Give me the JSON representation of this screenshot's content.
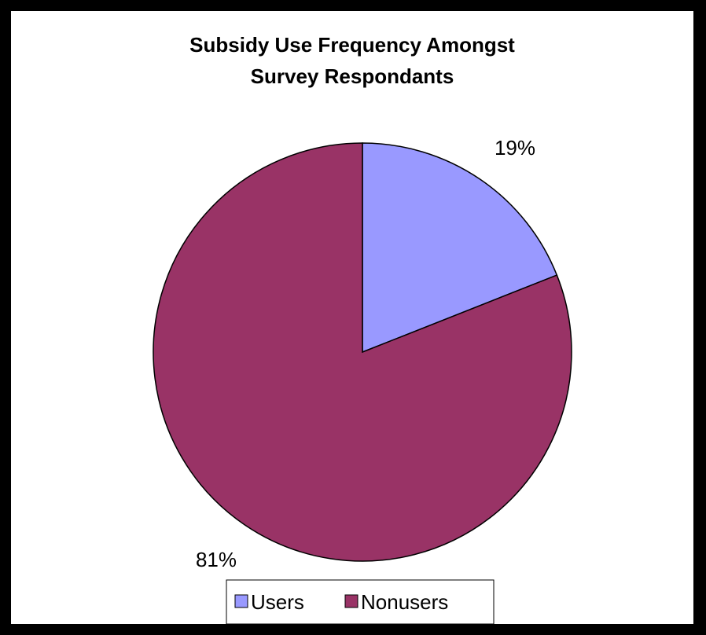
{
  "chart_data": {
    "type": "pie",
    "title": "Subsidy Use Frequency Amongst Survey Respondants",
    "title_lines": [
      "Subsidy Use Frequency Amongst",
      "Survey Respondants"
    ],
    "categories": [
      "Users",
      "Nonusers"
    ],
    "values": [
      19,
      81
    ],
    "data_labels": [
      "19%",
      "81%"
    ],
    "colors": [
      "#9999ff",
      "#993366"
    ],
    "legend": {
      "placement": "bottom",
      "entries": [
        "Users",
        "Nonusers"
      ]
    },
    "start_angle": "12 o'clock",
    "direction": "clockwise"
  }
}
